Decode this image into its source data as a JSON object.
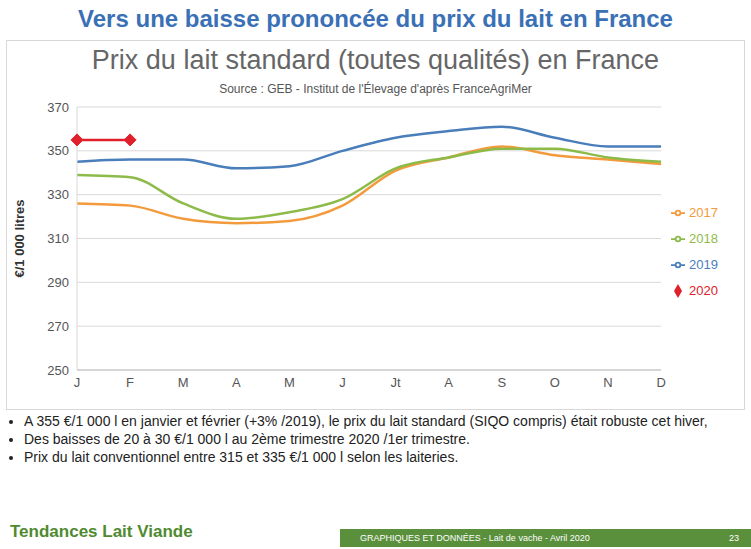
{
  "slide_title": "Vers une baisse prononcée du prix du lait en France",
  "chart_data": {
    "type": "line",
    "title": "Prix du lait standard (toutes qualités) en France",
    "subtitle": "Source : GEB - Institut de l'Élevage d'après FranceAgriMer",
    "y_label": "€/1 000 litres",
    "categories": [
      "J",
      "F",
      "M",
      "A",
      "M",
      "J",
      "Jt",
      "A",
      "S",
      "O",
      "N",
      "D"
    ],
    "series": [
      {
        "name": "2017",
        "color": "#f39a3c",
        "values": [
          326,
          325,
          319,
          317,
          318,
          325,
          341,
          347,
          352,
          348,
          346,
          344
        ]
      },
      {
        "name": "2018",
        "color": "#8dbb4a",
        "values": [
          339,
          338,
          326,
          319,
          322,
          328,
          342,
          347,
          351,
          351,
          347,
          345
        ]
      },
      {
        "name": "2019",
        "color": "#4a7ebb",
        "values": [
          345,
          346,
          346,
          342,
          343,
          350,
          356,
          359,
          361,
          356,
          352,
          352
        ]
      },
      {
        "name": "2020",
        "color": "#e0202a",
        "marker": "diamond",
        "values": [
          355,
          355,
          null,
          null,
          null,
          null,
          null,
          null,
          null,
          null,
          null,
          null
        ]
      }
    ],
    "ylim": [
      250,
      370
    ],
    "yticks": [
      250,
      270,
      290,
      310,
      330,
      350,
      370
    ],
    "grid": true,
    "legend": "right"
  },
  "bullets": [
    "A 355 €/1 000 l en janvier et février (+3% /2019), le prix du lait standard (SIQO compris) était robuste cet hiver,",
    "Des baisses de 20 à 30 €/1 000 l au 2ème trimestre 2020 /1er trimestre.",
    "Prix du lait conventionnel entre 315 et 335 €/1 000 l selon les laiteries."
  ],
  "footer": {
    "brand": "Tendances Lait Viande",
    "caption": "GRAPHIQUES ET DONNÉES - Lait de vache - Avril 2020",
    "page": "23"
  }
}
